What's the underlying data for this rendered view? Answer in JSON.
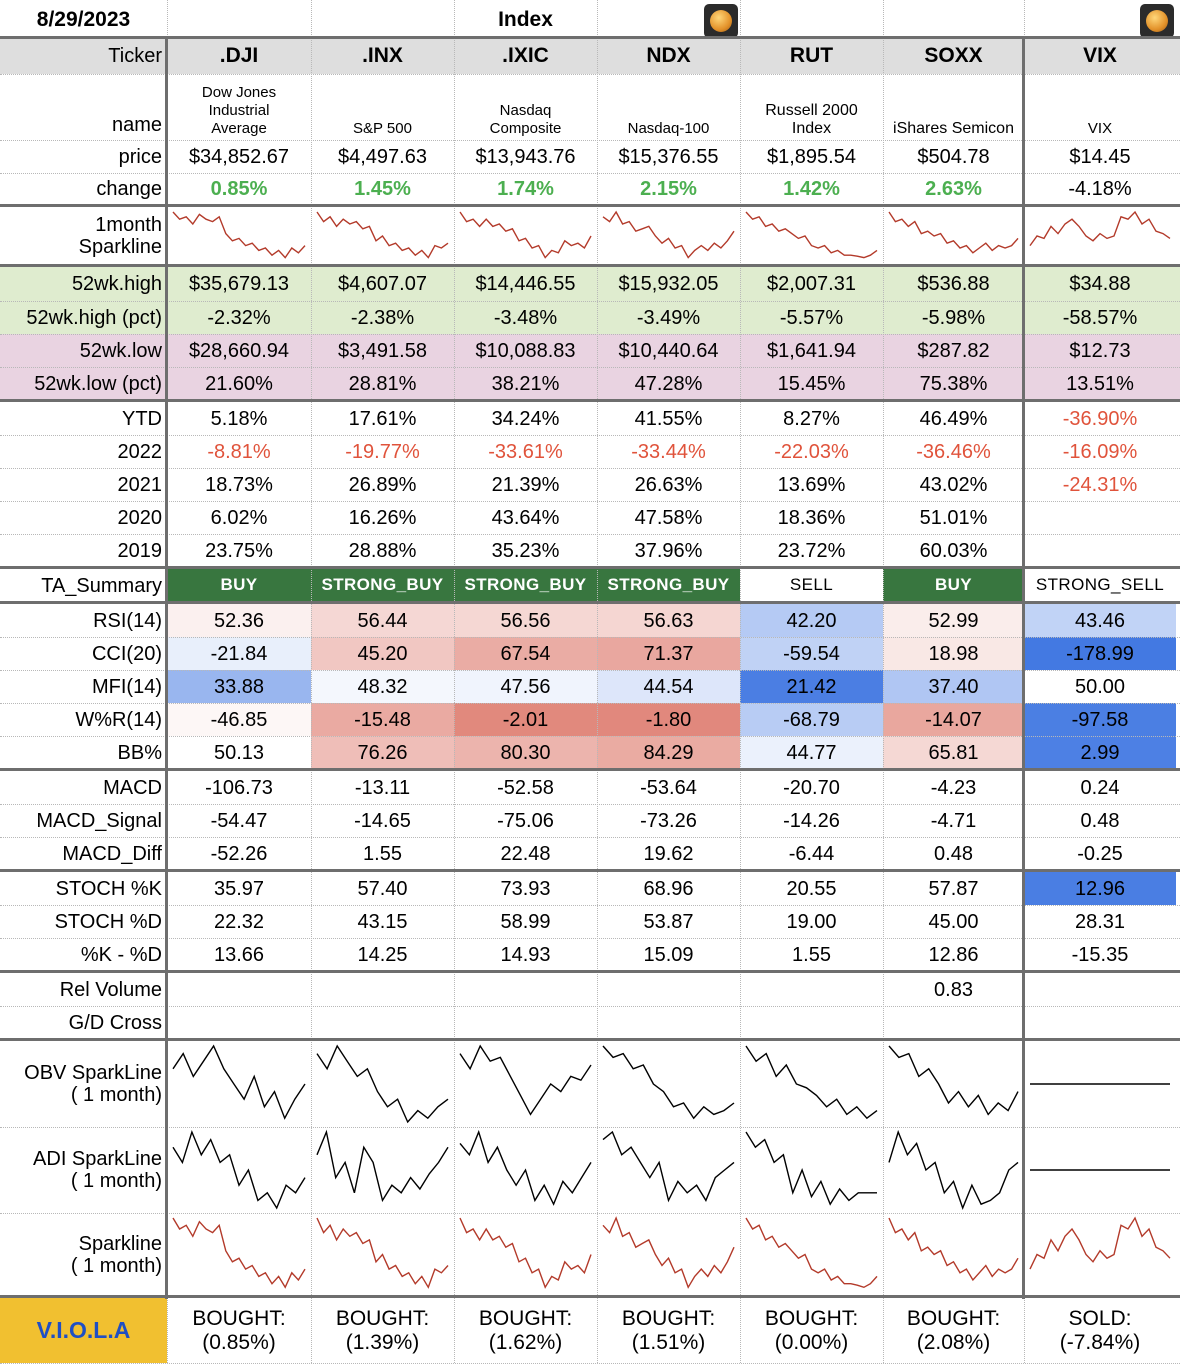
{
  "header": {
    "date": "8/29/2023",
    "section": "Index"
  },
  "icons": [
    "orange-app-icon",
    "orange-app-icon"
  ],
  "tickers": [
    ".DJI",
    ".INX",
    ".IXIC",
    "NDX",
    "RUT",
    "SOXX",
    "VIX"
  ],
  "labels": {
    "ticker": "Ticker",
    "name": "name",
    "price": "price",
    "change": "change",
    "sparkline_1m": [
      "1month",
      "Sparkline"
    ],
    "high52": "52wk.high",
    "high52pct": "52wk.high (pct)",
    "low52": "52wk.low",
    "low52pct": "52wk.low (pct)",
    "ytd": "YTD",
    "y2022": "2022",
    "y2021": "2021",
    "y2020": "2020",
    "y2019": "2019",
    "ta_summary": "TA_Summary",
    "rsi": "RSI(14)",
    "cci": "CCI(20)",
    "mfi": "MFI(14)",
    "wr": "W%R(14)",
    "bb": "BB%",
    "macd": "MACD",
    "macd_signal": "MACD_Signal",
    "macd_diff": "MACD_Diff",
    "stoch_k": "STOCH %K",
    "stoch_d": "STOCH %D",
    "k_minus_d": "%K - %D",
    "rel_volume": "Rel Volume",
    "gd_cross": "G/D Cross",
    "obv": [
      "OBV SparkLine",
      "( 1 month)"
    ],
    "adi": [
      "ADI SparkLine",
      "( 1 month)"
    ],
    "spark": [
      "Sparkline",
      "( 1 month)"
    ],
    "viola": "V.I.O.L.A"
  },
  "names": [
    "Dow Jones Industrial Average",
    "S&P 500",
    "Nasdaq Composite",
    "Nasdaq-100",
    "Russell 2000 Index",
    "iShares Semicon",
    "VIX"
  ],
  "price": [
    "$34,852.67",
    "$4,497.63",
    "$13,943.76",
    "$15,376.55",
    "$1,895.54",
    "$504.78",
    "$14.45"
  ],
  "change": [
    "0.85%",
    "1.45%",
    "1.74%",
    "2.15%",
    "1.42%",
    "2.63%",
    "-4.18%"
  ],
  "high52": [
    "$35,679.13",
    "$4,607.07",
    "$14,446.55",
    "$15,932.05",
    "$2,007.31",
    "$536.88",
    "$34.88"
  ],
  "high52pct": [
    "-2.32%",
    "-2.38%",
    "-3.48%",
    "-3.49%",
    "-5.57%",
    "-5.98%",
    "-58.57%"
  ],
  "low52": [
    "$28,660.94",
    "$3,491.58",
    "$10,088.83",
    "$10,440.64",
    "$1,641.94",
    "$287.82",
    "$12.73"
  ],
  "low52pct": [
    "21.60%",
    "28.81%",
    "38.21%",
    "47.28%",
    "15.45%",
    "75.38%",
    "13.51%"
  ],
  "ytd": [
    "5.18%",
    "17.61%",
    "34.24%",
    "41.55%",
    "8.27%",
    "46.49%",
    "-36.90%"
  ],
  "y2022": [
    "-8.81%",
    "-19.77%",
    "-33.61%",
    "-33.44%",
    "-22.03%",
    "-36.46%",
    "-16.09%"
  ],
  "y2021": [
    "18.73%",
    "26.89%",
    "21.39%",
    "26.63%",
    "13.69%",
    "43.02%",
    "-24.31%"
  ],
  "y2020": [
    "6.02%",
    "16.26%",
    "43.64%",
    "47.58%",
    "18.36%",
    "51.01%",
    ""
  ],
  "y2019": [
    "23.75%",
    "28.88%",
    "35.23%",
    "37.96%",
    "23.72%",
    "60.03%",
    ""
  ],
  "ta": [
    "BUY",
    "STRONG_BUY",
    "STRONG_BUY",
    "STRONG_BUY",
    "SELL",
    "BUY",
    "STRONG_SELL"
  ],
  "rsi": [
    "52.36",
    "56.44",
    "56.56",
    "56.63",
    "42.20",
    "52.99",
    "43.46"
  ],
  "cci": [
    "-21.84",
    "45.20",
    "67.54",
    "71.37",
    "-59.54",
    "18.98",
    "-178.99"
  ],
  "mfi": [
    "33.88",
    "48.32",
    "47.56",
    "44.54",
    "21.42",
    "37.40",
    "50.00"
  ],
  "wr": [
    "-46.85",
    "-15.48",
    "-2.01",
    "-1.80",
    "-68.79",
    "-14.07",
    "-97.58"
  ],
  "bb": [
    "50.13",
    "76.26",
    "80.30",
    "84.29",
    "44.77",
    "65.81",
    "2.99"
  ],
  "macd": [
    "-106.73",
    "-13.11",
    "-52.58",
    "-53.64",
    "-20.70",
    "-4.23",
    "0.24"
  ],
  "macd_signal": [
    "-54.47",
    "-14.65",
    "-75.06",
    "-73.26",
    "-14.26",
    "-4.71",
    "0.48"
  ],
  "macd_diff": [
    "-52.26",
    "1.55",
    "22.48",
    "19.62",
    "-6.44",
    "0.48",
    "-0.25"
  ],
  "stoch_k": [
    "35.97",
    "57.40",
    "73.93",
    "68.96",
    "20.55",
    "57.87",
    "12.96"
  ],
  "stoch_d": [
    "22.32",
    "43.15",
    "58.99",
    "53.87",
    "19.00",
    "45.00",
    "28.31"
  ],
  "k_minus_d": [
    "13.66",
    "14.25",
    "14.93",
    "15.09",
    "1.55",
    "12.86",
    "-15.35"
  ],
  "rel_volume": [
    "",
    "",
    "",
    "",
    "",
    "0.83",
    ""
  ],
  "gd_cross": [
    "",
    "",
    "",
    "",
    "",
    "",
    ""
  ],
  "viola": [
    [
      "BOUGHT:",
      "(0.85%)"
    ],
    [
      "BOUGHT:",
      "(1.39%)"
    ],
    [
      "BOUGHT:",
      "(1.62%)"
    ],
    [
      "BOUGHT:",
      "(1.51%)"
    ],
    [
      "BOUGHT:",
      "(0.00%)"
    ],
    [
      "BOUGHT:",
      "(2.08%)"
    ],
    [
      "SOLD:",
      "(-7.84%)"
    ]
  ],
  "colors": {
    "header_gray": "#dedede",
    "green_band": "#dfeccf",
    "purple_band": "#e9d3e1",
    "buy_green": "#38763f",
    "viola_gold": "#f1c030",
    "viola_blue": "#1f4fc4",
    "positive_text": "#4caf50",
    "negative_text": "#e0533b",
    "spark_red": "#b33a2a",
    "heat_red_strong": "#e08a80",
    "heat_blue_strong": "#4a7ee3"
  },
  "sparkline_1m": [
    [
      1.0,
      0.85,
      0.9,
      0.75,
      0.95,
      0.85,
      0.8,
      0.9,
      0.55,
      0.4,
      0.45,
      0.3,
      0.35,
      0.2,
      0.25,
      0.1,
      0.2,
      0.05,
      0.25,
      0.15,
      0.3
    ],
    [
      1.0,
      0.8,
      0.9,
      0.7,
      0.85,
      0.75,
      0.8,
      0.65,
      0.7,
      0.4,
      0.5,
      0.3,
      0.35,
      0.2,
      0.25,
      0.1,
      0.2,
      0.05,
      0.3,
      0.25,
      0.35
    ],
    [
      1.0,
      0.8,
      0.85,
      0.7,
      0.85,
      0.7,
      0.75,
      0.6,
      0.65,
      0.4,
      0.45,
      0.25,
      0.3,
      0.05,
      0.2,
      0.15,
      0.4,
      0.3,
      0.35,
      0.25,
      0.5
    ],
    [
      0.9,
      0.8,
      1.0,
      0.75,
      0.8,
      0.6,
      0.65,
      0.7,
      0.5,
      0.35,
      0.45,
      0.25,
      0.3,
      0.05,
      0.2,
      0.3,
      0.2,
      0.35,
      0.25,
      0.4,
      0.6
    ],
    [
      1.0,
      0.85,
      0.9,
      0.7,
      0.75,
      0.6,
      0.65,
      0.55,
      0.45,
      0.5,
      0.3,
      0.25,
      0.3,
      0.15,
      0.2,
      0.1,
      0.1,
      0.08,
      0.05,
      0.1,
      0.2
    ],
    [
      1.0,
      0.8,
      0.85,
      0.7,
      0.8,
      0.55,
      0.6,
      0.5,
      0.55,
      0.35,
      0.4,
      0.25,
      0.3,
      0.15,
      0.25,
      0.35,
      0.2,
      0.3,
      0.25,
      0.3,
      0.45
    ],
    [
      0.3,
      0.5,
      0.45,
      0.7,
      0.55,
      0.75,
      0.85,
      0.7,
      0.5,
      0.4,
      0.55,
      0.45,
      0.5,
      0.9,
      0.85,
      1.0,
      0.75,
      0.85,
      0.6,
      0.55,
      0.45
    ]
  ],
  "obv_1m": [
    [
      0.7,
      0.9,
      0.6,
      0.8,
      1.0,
      0.7,
      0.5,
      0.3,
      0.6,
      0.2,
      0.4,
      0.05,
      0.3,
      0.5
    ],
    [
      0.9,
      0.7,
      1.0,
      0.8,
      0.6,
      0.7,
      0.4,
      0.2,
      0.3,
      0.0,
      0.15,
      0.05,
      0.2,
      0.3
    ],
    [
      0.9,
      0.7,
      1.0,
      0.8,
      0.85,
      0.6,
      0.35,
      0.1,
      0.3,
      0.5,
      0.4,
      0.6,
      0.55,
      0.75
    ],
    [
      1.0,
      0.85,
      0.9,
      0.7,
      0.75,
      0.5,
      0.4,
      0.2,
      0.25,
      0.05,
      0.2,
      0.1,
      0.15,
      0.25
    ],
    [
      1.0,
      0.8,
      0.9,
      0.6,
      0.75,
      0.5,
      0.45,
      0.35,
      0.2,
      0.3,
      0.1,
      0.2,
      0.05,
      0.15
    ],
    [
      1.0,
      0.85,
      0.9,
      0.6,
      0.7,
      0.5,
      0.25,
      0.4,
      0.2,
      0.35,
      0.1,
      0.25,
      0.15,
      0.4
    ],
    [
      0.5,
      0.5,
      0.5,
      0.5,
      0.5,
      0.5,
      0.5,
      0.5,
      0.5,
      0.5,
      0.5,
      0.5,
      0.5,
      0.5
    ]
  ],
  "adi_1m": [
    [
      0.8,
      0.6,
      1.0,
      0.7,
      0.9,
      0.6,
      0.7,
      0.3,
      0.5,
      0.1,
      0.2,
      0.0,
      0.3,
      0.2,
      0.4
    ],
    [
      0.7,
      1.0,
      0.4,
      0.6,
      0.2,
      0.8,
      0.6,
      0.1,
      0.3,
      0.2,
      0.4,
      0.25,
      0.45,
      0.6,
      0.8
    ],
    [
      0.85,
      0.7,
      1.0,
      0.6,
      0.8,
      0.5,
      0.3,
      0.5,
      0.1,
      0.3,
      0.05,
      0.35,
      0.2,
      0.4,
      0.6
    ],
    [
      0.9,
      1.0,
      0.7,
      0.8,
      0.6,
      0.4,
      0.6,
      0.1,
      0.35,
      0.2,
      0.3,
      0.1,
      0.4,
      0.5,
      0.6
    ],
    [
      1.0,
      0.8,
      0.9,
      0.6,
      0.7,
      0.2,
      0.5,
      0.15,
      0.35,
      0.05,
      0.25,
      0.1,
      0.2,
      0.2,
      0.2
    ],
    [
      0.6,
      1.0,
      0.7,
      0.85,
      0.5,
      0.6,
      0.2,
      0.35,
      0.0,
      0.3,
      0.05,
      0.1,
      0.2,
      0.5,
      0.6
    ],
    [
      0.5,
      0.5,
      0.5,
      0.5,
      0.5,
      0.5,
      0.5,
      0.5,
      0.5,
      0.5,
      0.5,
      0.5,
      0.5,
      0.5,
      0.5
    ]
  ]
}
